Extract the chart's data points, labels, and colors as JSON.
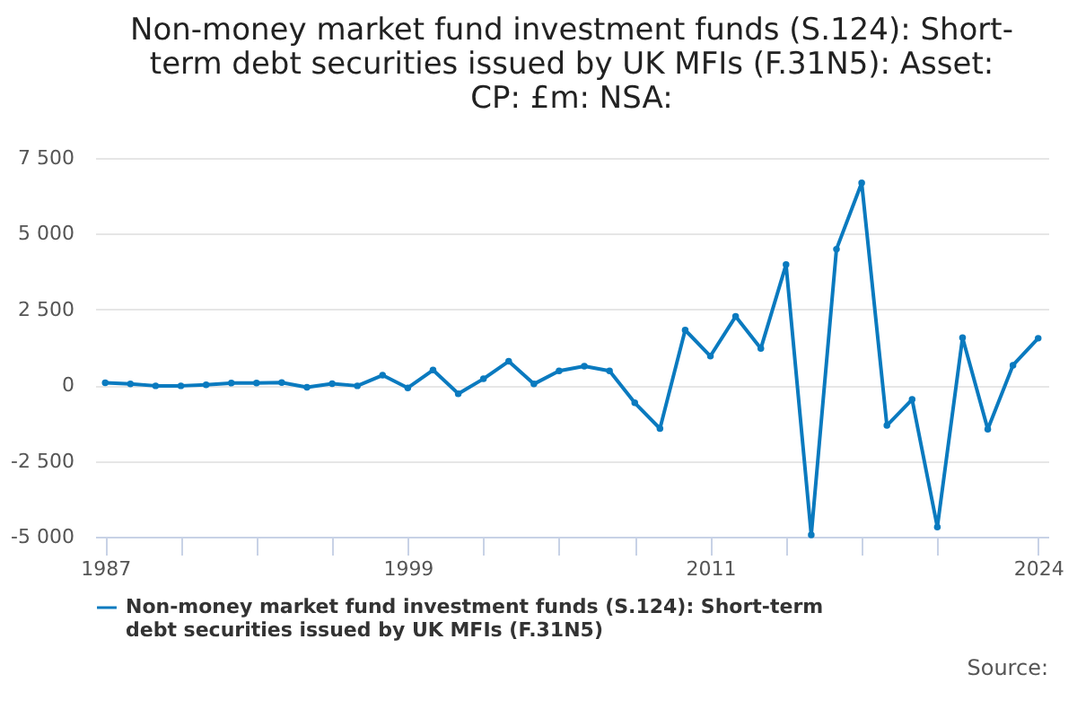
{
  "chart_data": {
    "type": "line",
    "title": "Non-money market fund investment funds (S.124): Short-term debt securities issued by UK MFIs (F.31N5): Asset: CP: £m: NSA:",
    "x": [
      1987,
      1988,
      1989,
      1990,
      1991,
      1992,
      1993,
      1994,
      1995,
      1996,
      1997,
      1998,
      1999,
      2000,
      2001,
      2002,
      2003,
      2004,
      2005,
      2006,
      2007,
      2008,
      2009,
      2010,
      2011,
      2012,
      2013,
      2014,
      2015,
      2016,
      2017,
      2018,
      2019,
      2020,
      2021,
      2022,
      2023,
      2024
    ],
    "series": [
      {
        "name": "Non-money market fund investment funds (S.124): Short-term debt securities issued by UK MFIs (F.31N5)",
        "color": "#0a7abf",
        "values": [
          80,
          40,
          -20,
          -20,
          10,
          70,
          70,
          90,
          -70,
          50,
          -20,
          330,
          -90,
          500,
          -280,
          210,
          790,
          40,
          470,
          630,
          470,
          -580,
          -1430,
          1820,
          960,
          2270,
          1210,
          3980,
          -4940,
          4490,
          6680,
          -1330,
          -470,
          -4680,
          1570,
          -1450,
          660,
          1550
        ]
      }
    ],
    "xlim": [
      1986.6,
      2024.4
    ],
    "xticks": [
      1987,
      {
        "value": 1990,
        "label": null
      },
      {
        "value": 1993,
        "label": null
      },
      {
        "value": 1996,
        "label": null
      },
      1999,
      {
        "value": 2002,
        "label": null
      },
      {
        "value": 2005,
        "label": null
      },
      {
        "value": 2008,
        "label": null
      },
      2011,
      {
        "value": 2014,
        "label": null
      },
      {
        "value": 2017,
        "label": null
      },
      {
        "value": 2020,
        "label": null
      },
      2024
    ],
    "ylim": [
      -5000,
      7500
    ],
    "yticks": [
      -5000,
      -2500,
      0,
      2500,
      5000,
      7500
    ],
    "grid": "y",
    "legend": "bottom",
    "marker": "circle",
    "line_style": "solid",
    "annotations": [
      "Source:"
    ]
  }
}
